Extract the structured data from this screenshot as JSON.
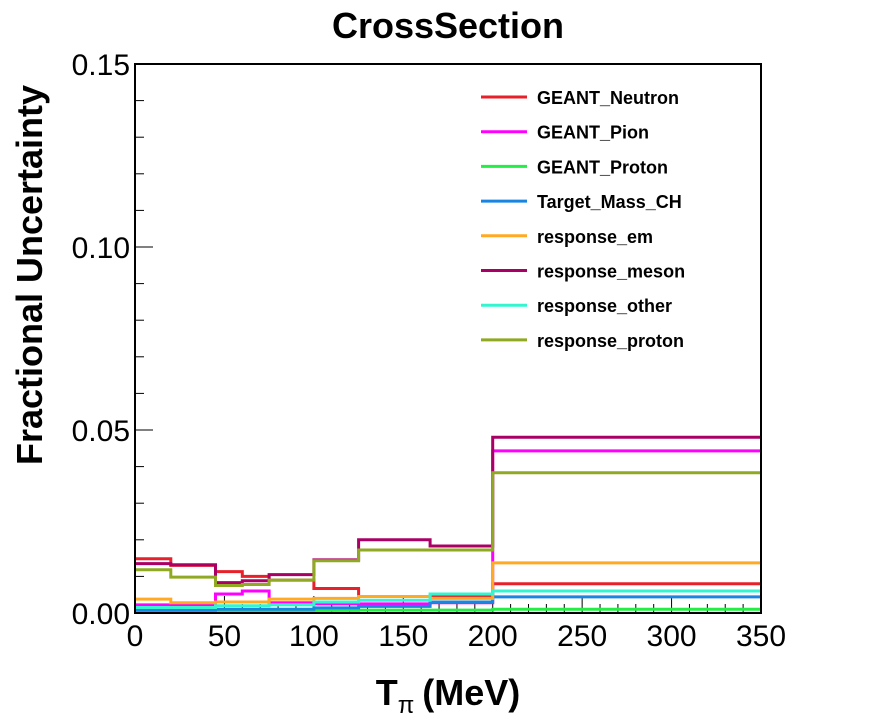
{
  "chart_data": {
    "type": "line",
    "title": "CrossSection",
    "xlabel": "T",
    "xlabel_subscript": "π",
    "xlabel_unit": "(MeV)",
    "ylabel": "Fractional Uncertainty",
    "xlim": [
      0,
      350
    ],
    "ylim": [
      0,
      0.15
    ],
    "x_ticks": [
      "0",
      "50",
      "100",
      "150",
      "200",
      "250",
      "300",
      "350"
    ],
    "y_ticks": [
      "0.00",
      "0.05",
      "0.10",
      "0.15"
    ],
    "legend_position": "top-right",
    "bin_edges": [
      0,
      20,
      45,
      60,
      75,
      100,
      125,
      165,
      200,
      350
    ],
    "series": [
      {
        "name": "GEANT_Neutron",
        "color": "#e8202a",
        "values": [
          0.0148,
          0.013,
          0.0113,
          0.01,
          0.009,
          0.0067,
          0.0045,
          0.0047,
          0.008
        ]
      },
      {
        "name": "GEANT_Pion",
        "color": "#ff00ff",
        "values": [
          0.0022,
          0.0023,
          0.0052,
          0.006,
          0.0028,
          0.0025,
          0.0025,
          0.0028,
          0.0443
        ]
      },
      {
        "name": "GEANT_Proton",
        "color": "#22ee44",
        "values": [
          0.0006,
          0.0006,
          0.0006,
          0.0006,
          0.0006,
          0.0007,
          0.0008,
          0.0008,
          0.001
        ]
      },
      {
        "name": "Target_Mass_CH",
        "color": "#1a85e0",
        "values": [
          0.0008,
          0.0008,
          0.001,
          0.001,
          0.001,
          0.0014,
          0.0018,
          0.003,
          0.0044
        ]
      },
      {
        "name": "response_em",
        "color": "#ffaa22",
        "values": [
          0.0038,
          0.0028,
          0.003,
          0.003,
          0.0038,
          0.004,
          0.0045,
          0.004,
          0.0137
        ]
      },
      {
        "name": "response_meson",
        "color": "#aa0066",
        "values": [
          0.0135,
          0.0132,
          0.0083,
          0.0088,
          0.0105,
          0.0145,
          0.02,
          0.0183,
          0.048
        ]
      },
      {
        "name": "response_other",
        "color": "#33f5d0",
        "values": [
          0.0015,
          0.0015,
          0.002,
          0.002,
          0.0022,
          0.003,
          0.0035,
          0.0052,
          0.006
        ]
      },
      {
        "name": "response_proton",
        "color": "#8faa22",
        "values": [
          0.0118,
          0.0098,
          0.0075,
          0.0078,
          0.009,
          0.0143,
          0.0172,
          0.0172,
          0.0383
        ]
      }
    ]
  }
}
